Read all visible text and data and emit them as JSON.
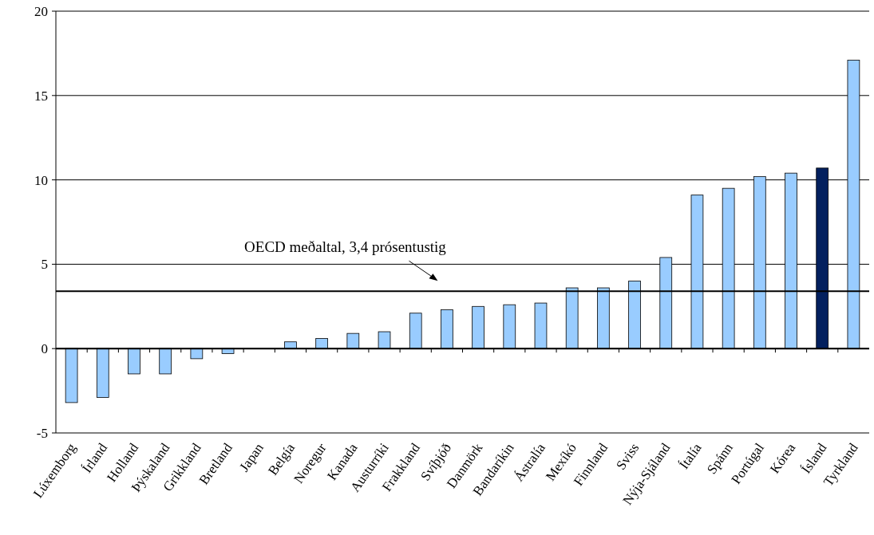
{
  "chart_data": {
    "type": "bar",
    "categories": [
      "Lúxemborg",
      "Írland",
      "Holland",
      "Þýskaland",
      "Grikkland",
      "Bretland",
      "Japan",
      "Belgía",
      "Noregur",
      "Kanada",
      "Austurríki",
      "Frakkland",
      "Svíþjóð",
      "Danmörk",
      "Bandaríkin",
      "Ástralía",
      "Mexíkó",
      "Finnland",
      "Sviss",
      "Nýja-Sjáland",
      "Ítalía",
      "Spánn",
      "Portúgal",
      "Kórea",
      "Ísland",
      "Tyrkland"
    ],
    "values": [
      -3.2,
      -2.9,
      -1.5,
      -1.5,
      -0.6,
      -0.3,
      0,
      0.4,
      0.6,
      0.9,
      1.0,
      2.1,
      2.3,
      2.5,
      2.6,
      2.7,
      3.6,
      3.6,
      4.0,
      5.4,
      9.1,
      9.5,
      10.2,
      10.4,
      10.7,
      17.1
    ],
    "colors": [
      "#99ccff",
      "#99ccff",
      "#99ccff",
      "#99ccff",
      "#99ccff",
      "#99ccff",
      "#99ccff",
      "#99ccff",
      "#99ccff",
      "#99ccff",
      "#99ccff",
      "#99ccff",
      "#99ccff",
      "#99ccff",
      "#99ccff",
      "#99ccff",
      "#99ccff",
      "#99ccff",
      "#99ccff",
      "#99ccff",
      "#99ccff",
      "#99ccff",
      "#99ccff",
      "#99ccff",
      "#03205e",
      "#99ccff"
    ],
    "ylim": [
      -5,
      20
    ],
    "yticks": [
      -5,
      0,
      5,
      10,
      15,
      20
    ],
    "grid": "y",
    "ref_lines": [
      {
        "axis": "y",
        "value": 3.4,
        "label": "OECD meðaltal, 3,4 prósentustig",
        "color": "#000000"
      }
    ]
  }
}
